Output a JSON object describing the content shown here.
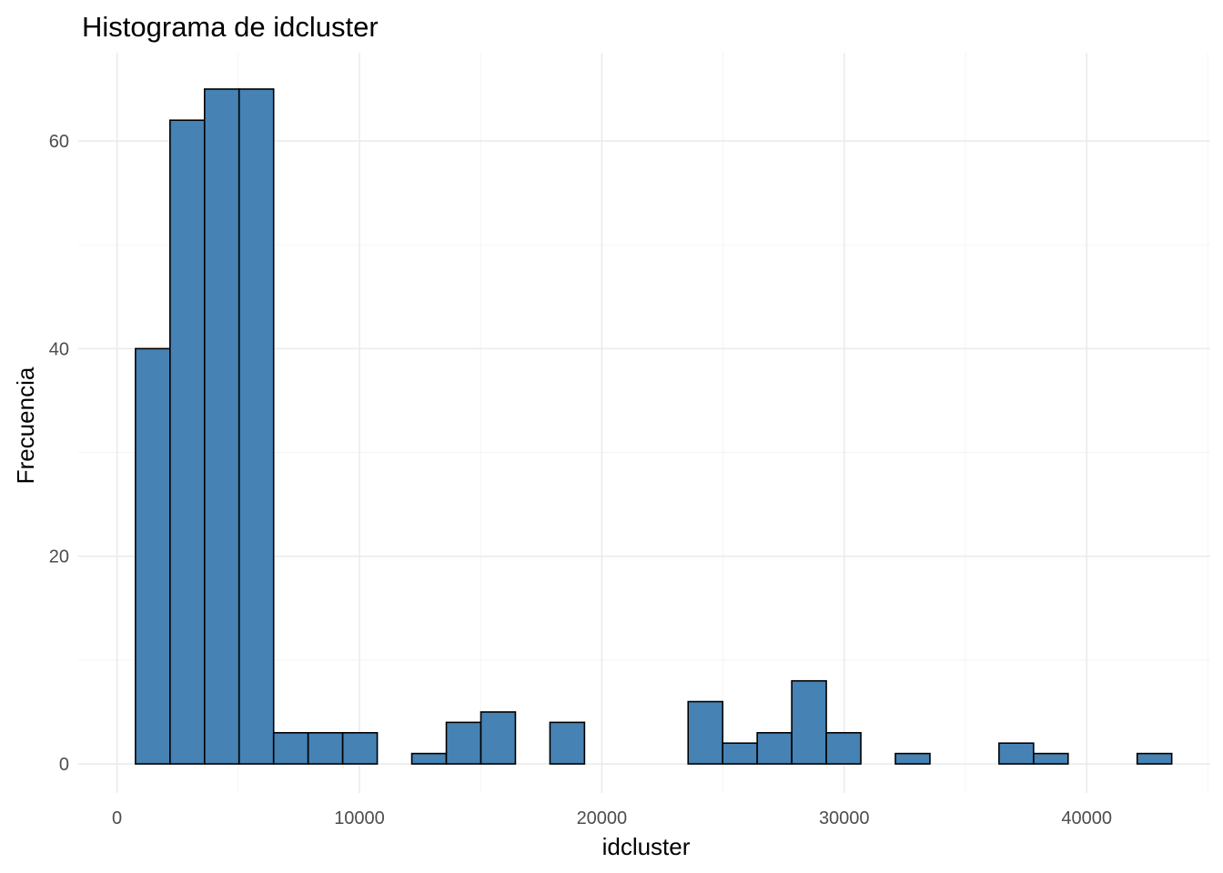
{
  "chart_data": {
    "type": "bar",
    "title": "Histograma de idcluster",
    "xlabel": "idcluster",
    "ylabel": "Frecuencia",
    "bar_color": "#4682B4",
    "bar_outline_color": "#000000",
    "grid": true,
    "legend": "none",
    "xlim": [
      -1600,
      45100
    ],
    "ylim": [
      -2.8,
      68.5
    ],
    "x_ticks": [
      {
        "value": 0,
        "label": "0"
      },
      {
        "value": 10000,
        "label": "10000"
      },
      {
        "value": 20000,
        "label": "20000"
      },
      {
        "value": 30000,
        "label": "30000"
      },
      {
        "value": 40000,
        "label": "40000"
      }
    ],
    "y_ticks": [
      {
        "value": 0,
        "label": "0"
      },
      {
        "value": 20,
        "label": "20"
      },
      {
        "value": 40,
        "label": "40"
      },
      {
        "value": 60,
        "label": "60"
      }
    ],
    "bins": [
      {
        "x0": 760,
        "x1": 2185,
        "count": 40
      },
      {
        "x0": 2185,
        "x1": 3610,
        "count": 62
      },
      {
        "x0": 3610,
        "x1": 5035,
        "count": 65
      },
      {
        "x0": 5035,
        "x1": 6460,
        "count": 65
      },
      {
        "x0": 6460,
        "x1": 7885,
        "count": 3
      },
      {
        "x0": 7885,
        "x1": 9310,
        "count": 3
      },
      {
        "x0": 9310,
        "x1": 10735,
        "count": 3
      },
      {
        "x0": 10735,
        "x1": 12160,
        "count": 0
      },
      {
        "x0": 12160,
        "x1": 13585,
        "count": 1
      },
      {
        "x0": 13585,
        "x1": 15010,
        "count": 4
      },
      {
        "x0": 15010,
        "x1": 16435,
        "count": 5
      },
      {
        "x0": 16435,
        "x1": 17860,
        "count": 0
      },
      {
        "x0": 17860,
        "x1": 19285,
        "count": 4
      },
      {
        "x0": 19285,
        "x1": 20710,
        "count": 0
      },
      {
        "x0": 20710,
        "x1": 22135,
        "count": 0
      },
      {
        "x0": 22135,
        "x1": 23560,
        "count": 0
      },
      {
        "x0": 23560,
        "x1": 24985,
        "count": 6
      },
      {
        "x0": 24985,
        "x1": 26410,
        "count": 2
      },
      {
        "x0": 26410,
        "x1": 27835,
        "count": 3
      },
      {
        "x0": 27835,
        "x1": 29260,
        "count": 8
      },
      {
        "x0": 29260,
        "x1": 30685,
        "count": 3
      },
      {
        "x0": 30685,
        "x1": 32110,
        "count": 0
      },
      {
        "x0": 32110,
        "x1": 33535,
        "count": 1
      },
      {
        "x0": 33535,
        "x1": 34960,
        "count": 0
      },
      {
        "x0": 34960,
        "x1": 36385,
        "count": 0
      },
      {
        "x0": 36385,
        "x1": 37810,
        "count": 2
      },
      {
        "x0": 37810,
        "x1": 39235,
        "count": 1
      },
      {
        "x0": 39235,
        "x1": 40660,
        "count": 0
      },
      {
        "x0": 40660,
        "x1": 42085,
        "count": 0
      },
      {
        "x0": 42085,
        "x1": 43510,
        "count": 1
      }
    ]
  }
}
